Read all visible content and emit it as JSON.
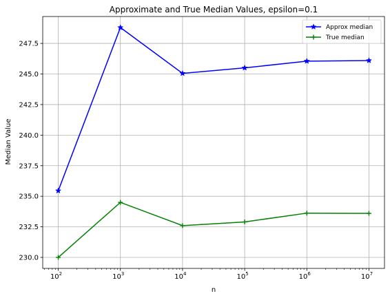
{
  "chart_data": {
    "type": "line",
    "title": "Approximate and True Median Values, epsilon=0.1",
    "xlabel": "n",
    "ylabel": "Median Value",
    "x_scale": "log",
    "x": [
      100,
      1000,
      10000,
      100000,
      1000000,
      10000000
    ],
    "x_tick_base": "10",
    "x_tick_exponents": [
      "2",
      "3",
      "4",
      "5",
      "6",
      "7"
    ],
    "y_ticks": [
      "230.0",
      "232.5",
      "235.0",
      "237.5",
      "240.0",
      "242.5",
      "245.0",
      "247.5"
    ],
    "y_tick_values": [
      230.0,
      232.5,
      235.0,
      237.5,
      240.0,
      242.5,
      245.0,
      247.5
    ],
    "ylim": [
      229.1,
      249.7
    ],
    "xlim_log10": [
      1.75,
      7.25
    ],
    "grid": true,
    "legend_position": "top-right",
    "series": [
      {
        "name": "Approx median",
        "color": "#0000ff",
        "marker": "star",
        "values": [
          235.45,
          248.8,
          245.05,
          245.5,
          246.05,
          246.1
        ]
      },
      {
        "name": "True median",
        "color": "#008000",
        "marker": "plus",
        "values": [
          230.0,
          234.5,
          232.6,
          232.9,
          233.62,
          233.6
        ]
      }
    ]
  }
}
